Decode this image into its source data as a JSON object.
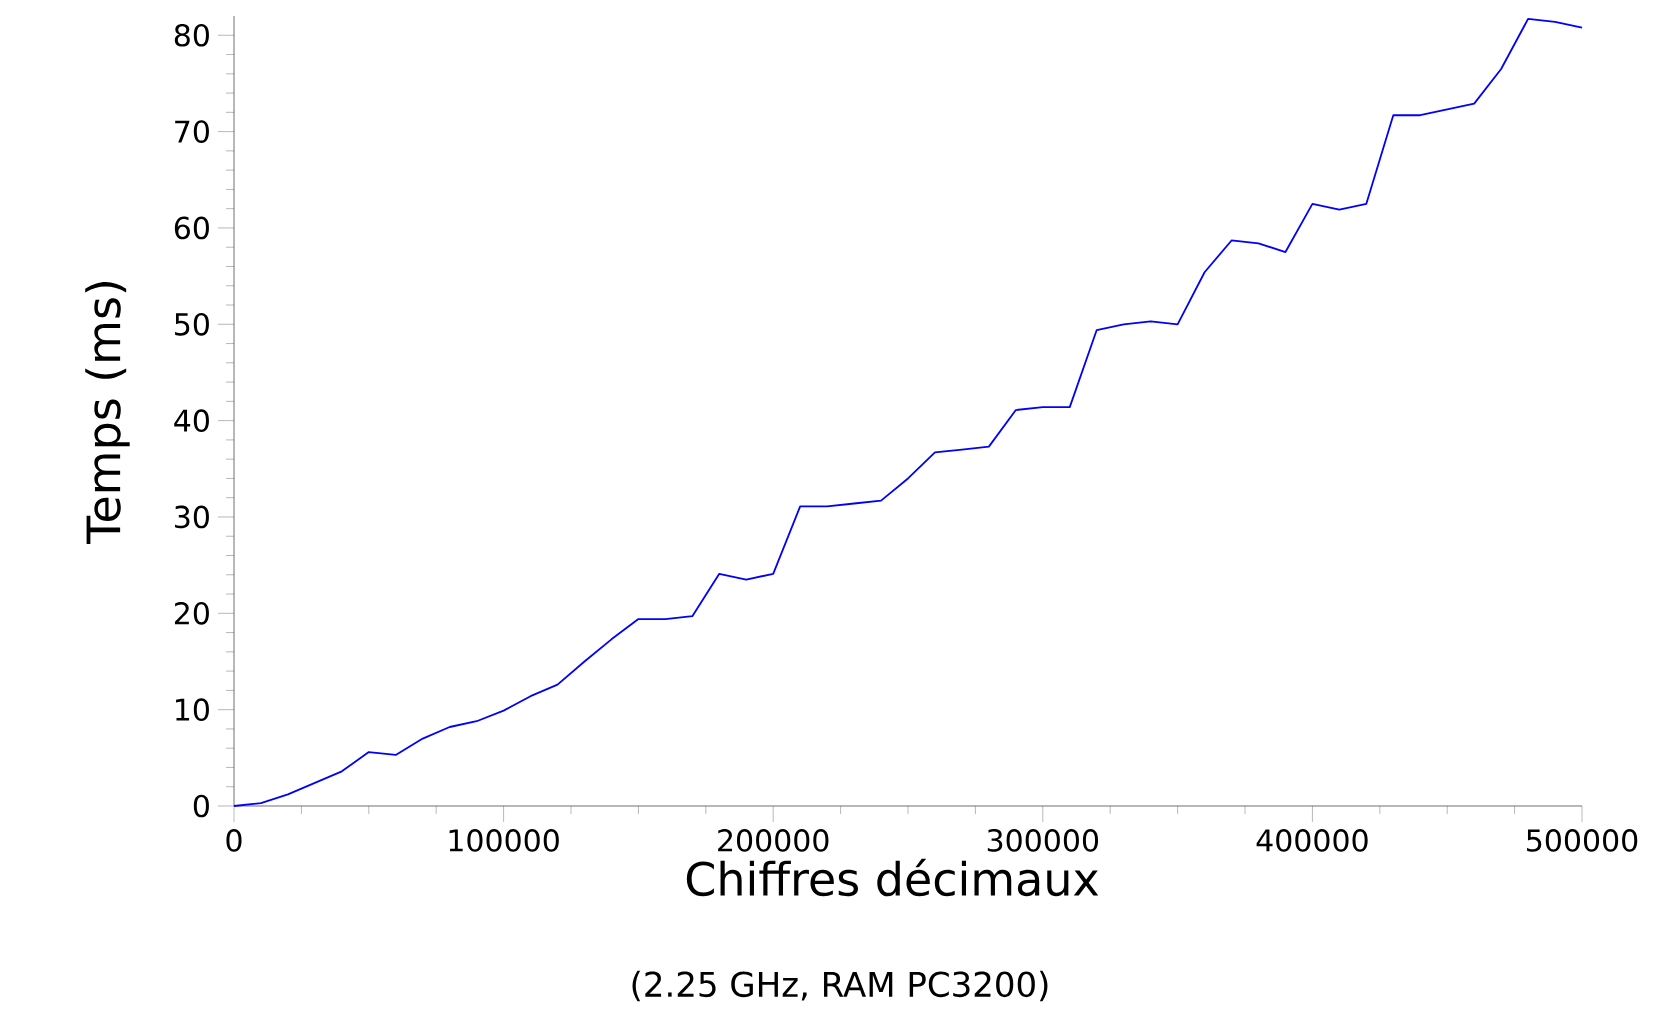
{
  "chart_data": {
    "type": "line",
    "xlabel": "Chiffres décimaux",
    "ylabel": "Temps (ms)",
    "annotations": [
      "(2.25 GHz, RAM PC3200)"
    ],
    "x": [
      0,
      10000,
      20000,
      30000,
      40000,
      50000,
      60000,
      70000,
      80000,
      90000,
      100000,
      110000,
      120000,
      130000,
      140000,
      150000,
      160000,
      170000,
      180000,
      190000,
      200000,
      210000,
      220000,
      230000,
      240000,
      250000,
      260000,
      270000,
      280000,
      290000,
      300000,
      310000,
      320000,
      330000,
      340000,
      350000,
      360000,
      370000,
      380000,
      390000,
      400000,
      410000,
      420000,
      430000,
      440000,
      450000,
      460000,
      470000,
      480000,
      490000,
      500000
    ],
    "values": [
      0,
      0.3,
      1.2,
      2.4,
      3.6,
      5.6,
      5.3,
      7.0,
      8.2,
      8.8,
      9.9,
      11.4,
      12.6,
      15.0,
      17.3,
      19.4,
      19.4,
      19.7,
      24.1,
      23.5,
      24.1,
      31.1,
      31.1,
      31.4,
      31.7,
      34.0,
      36.7,
      37.0,
      37.3,
      41.1,
      41.4,
      41.4,
      49.4,
      50.0,
      50.3,
      50.0,
      55.4,
      58.7,
      58.4,
      57.5,
      62.5,
      61.9,
      62.5,
      71.7,
      71.7,
      72.3,
      72.9,
      76.5,
      81.7,
      81.4,
      80.8
    ],
    "color": "#0000ff",
    "xlim": [
      0,
      500000
    ],
    "xticks": [
      0,
      100000,
      200000,
      300000,
      400000,
      500000
    ],
    "ylim": [
      0,
      82
    ],
    "yticks": [
      0,
      10,
      20,
      30,
      40,
      50,
      60,
      70,
      80
    ]
  }
}
